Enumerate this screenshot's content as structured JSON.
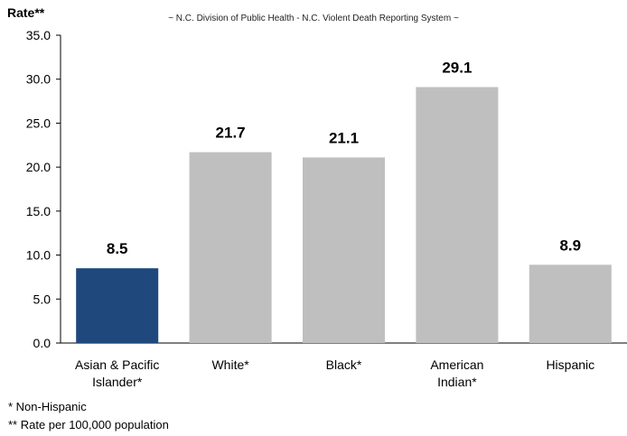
{
  "chart_data": {
    "type": "bar",
    "subtitle": "~ N.C. Division of Public Health - N.C. Violent Death Reporting System ~",
    "ylabel": "Rate**",
    "xlabel": "",
    "categories": [
      "Asian & Pacific Islander*",
      "White*",
      "Black*",
      "American Indian*",
      "Hispanic"
    ],
    "category_lines": [
      [
        "Asian & Pacific",
        "Islander*"
      ],
      [
        "White*"
      ],
      [
        "Black*"
      ],
      [
        "American",
        "Indian*"
      ],
      [
        "Hispanic"
      ]
    ],
    "values": [
      8.5,
      21.7,
      21.1,
      29.1,
      8.9
    ],
    "value_labels": [
      "8.5",
      "21.7",
      "21.1",
      "29.1",
      "8.9"
    ],
    "bar_colors": [
      "#1f497d",
      "#bfbfbf",
      "#bfbfbf",
      "#bfbfbf",
      "#bfbfbf"
    ],
    "ylim": [
      0,
      35
    ],
    "yticks": [
      "0.0",
      "5.0",
      "10.0",
      "15.0",
      "20.0",
      "25.0",
      "30.0",
      "35.0"
    ],
    "grid": false,
    "legend": "none"
  },
  "footnotes": {
    "note1": "* Non-Hispanic",
    "note2": "** Rate per 100,000 population"
  }
}
